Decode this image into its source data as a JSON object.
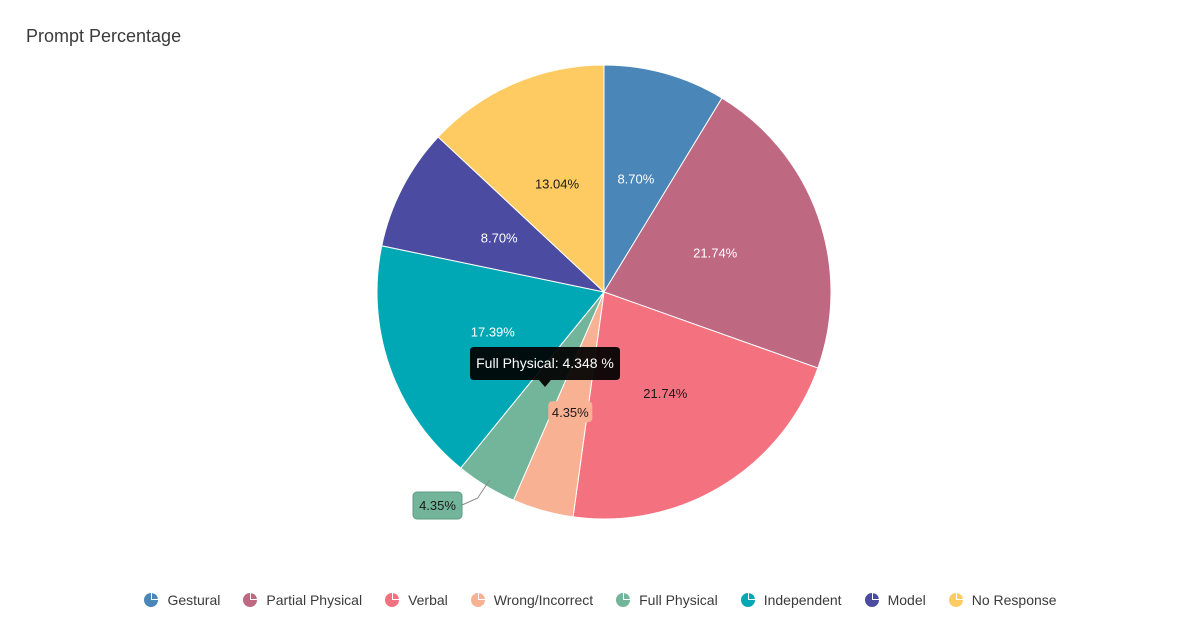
{
  "title": "Prompt Percentage",
  "tooltip": {
    "text": "Full Physical: 4.348 %"
  },
  "chart_data": {
    "type": "pie",
    "title": "Prompt Percentage",
    "legend_position": "bottom",
    "slices": [
      {
        "name": "Gestural",
        "value": 8.7,
        "label": "8.70%",
        "color": "#4a86b8"
      },
      {
        "name": "Partial Physical",
        "value": 21.74,
        "label": "21.74%",
        "color": "#be6881"
      },
      {
        "name": "Verbal",
        "value": 21.74,
        "label": "21.74%",
        "color": "#f4727f"
      },
      {
        "name": "Wrong/Incorrect",
        "value": 4.35,
        "label": "4.35%",
        "color": "#f8b193"
      },
      {
        "name": "Full Physical",
        "value": 4.35,
        "label": "4.35%",
        "color": "#72b59b"
      },
      {
        "name": "Independent",
        "value": 17.39,
        "label": "17.39%",
        "color": "#00a8b5"
      },
      {
        "name": "Model",
        "value": 8.7,
        "label": "8.70%",
        "color": "#4a4ba1"
      },
      {
        "name": "No Response",
        "value": 13.04,
        "label": "13.04%",
        "color": "#fecb63"
      }
    ]
  }
}
